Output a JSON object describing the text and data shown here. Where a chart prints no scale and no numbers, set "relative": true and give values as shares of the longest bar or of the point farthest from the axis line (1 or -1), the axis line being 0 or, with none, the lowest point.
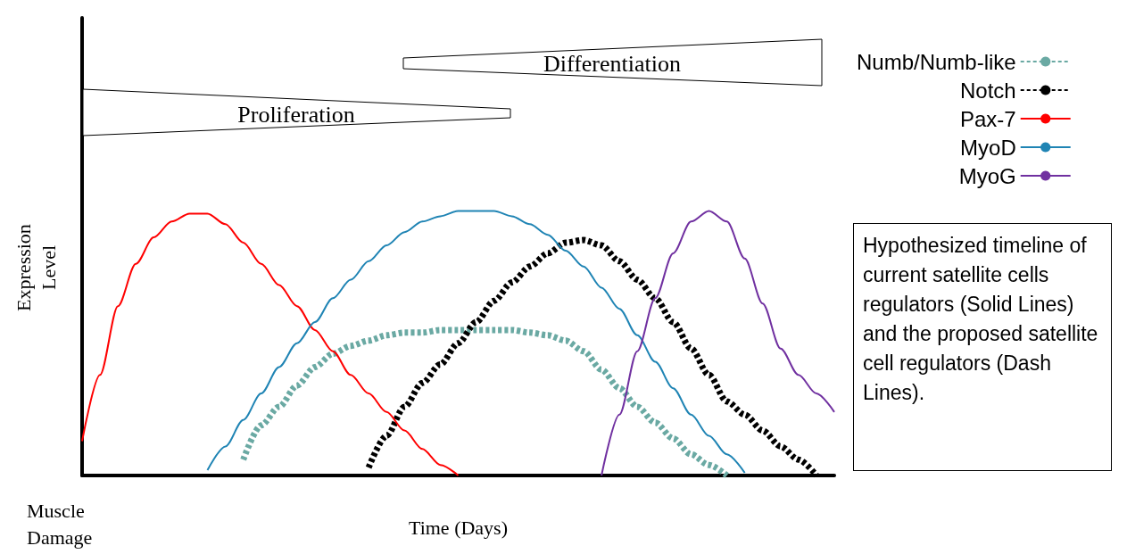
{
  "chart_data": {
    "type": "line",
    "relative": true,
    "xlabel": "Time (Days)",
    "ylabel": "Expression Level",
    "legend": "top right",
    "marker": "none",
    "categories": [
      null,
      null,
      null,
      null,
      null,
      null,
      null,
      null,
      null,
      null,
      null,
      null,
      null,
      null,
      null,
      null,
      null,
      null,
      null,
      null,
      null,
      null,
      null,
      null,
      null,
      null,
      null,
      null,
      null,
      null,
      null,
      null,
      null,
      null,
      null,
      null,
      null,
      null,
      null,
      null,
      null,
      null,
      null
    ],
    "series": [
      {
        "name": "Numb/Numb-like",
        "color": "#6aa9a3",
        "line_style": "dashed",
        "values": [
          null,
          null,
          null,
          null,
          null,
          null,
          null,
          null,
          null,
          0.06,
          0.19,
          0.26,
          0.34,
          0.41,
          0.46,
          0.49,
          0.51,
          0.53,
          0.54,
          0.54,
          0.55,
          0.55,
          0.55,
          0.55,
          0.55,
          0.54,
          0.53,
          0.51,
          0.47,
          0.4,
          0.33,
          0.26,
          0.2,
          0.14,
          0.08,
          0.04,
          0,
          null,
          null,
          null,
          null,
          null,
          null
        ]
      },
      {
        "name": "Notch",
        "color": "#000000",
        "line_style": "dashed",
        "values": [
          null,
          null,
          null,
          null,
          null,
          null,
          null,
          null,
          null,
          null,
          null,
          null,
          null,
          null,
          null,
          null,
          0.03,
          0.15,
          0.26,
          0.35,
          0.42,
          0.5,
          0.58,
          0.66,
          0.73,
          0.79,
          0.84,
          0.88,
          0.89,
          0.87,
          0.81,
          0.74,
          0.67,
          0.58,
          0.48,
          0.38,
          0.28,
          0.23,
          0.17,
          0.11,
          0.06,
          0,
          null
        ]
      },
      {
        "name": "Pax-7",
        "color": "#ff0000",
        "line_style": "solid",
        "values": [
          0.13,
          0.38,
          0.64,
          0.8,
          0.9,
          0.96,
          0.99,
          0.99,
          0.95,
          0.88,
          0.8,
          0.72,
          0.64,
          0.55,
          0.47,
          0.38,
          0.31,
          0.24,
          0.17,
          0.1,
          0.04,
          0,
          null,
          null,
          null,
          null,
          null,
          null,
          null,
          null,
          null,
          null,
          null,
          null,
          null,
          null,
          null,
          null,
          null,
          null,
          null,
          null,
          null
        ]
      },
      {
        "name": "MyoD",
        "color": "#1f84b4",
        "line_style": "solid",
        "values": [
          null,
          null,
          null,
          null,
          null,
          null,
          null,
          0.02,
          0.11,
          0.21,
          0.31,
          0.41,
          0.5,
          0.58,
          0.67,
          0.74,
          0.81,
          0.87,
          0.92,
          0.96,
          0.98,
          1,
          1,
          1,
          0.98,
          0.95,
          0.91,
          0.85,
          0.79,
          0.71,
          0.63,
          0.53,
          0.43,
          0.33,
          0.23,
          0.15,
          0.08,
          0.01,
          null,
          null,
          null,
          null,
          null
        ]
      },
      {
        "name": "MyoG",
        "color": "#7030a0",
        "line_style": "solid",
        "values": [
          null,
          null,
          null,
          null,
          null,
          null,
          null,
          null,
          null,
          null,
          null,
          null,
          null,
          null,
          null,
          null,
          null,
          null,
          null,
          null,
          null,
          null,
          null,
          null,
          null,
          null,
          null,
          null,
          null,
          0,
          0.23,
          0.47,
          0.67,
          0.84,
          0.96,
          1,
          0.96,
          0.82,
          0.65,
          0.48,
          0.38,
          0.31,
          0.24
        ]
      }
    ],
    "annotations": [
      "Proliferation",
      "Differentiation",
      "Muscle Damage",
      "Hypothesized timeline of current satellite cells regulators (Solid Lines) and the proposed satellite cell regulators (Dash Lines)."
    ]
  }
}
